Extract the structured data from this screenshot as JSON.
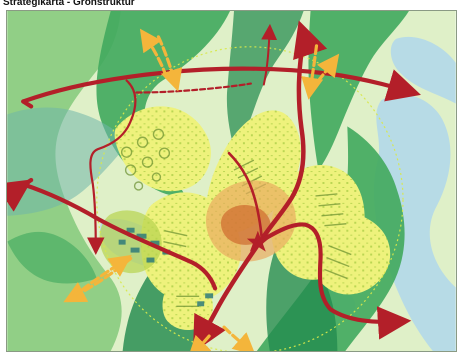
{
  "page": {
    "title": "Strategikarta - Grönstruktur"
  },
  "map": {
    "colors": {
      "background": "#dff0c8",
      "water": "#b7dbe6",
      "outer_green": "#91cf86",
      "green_wedge": "#43aa5f",
      "dark_green": "#238a4e",
      "built_area": "#eef27c",
      "urban_fabric": "#b6d34f",
      "centre": "#e9aa5f",
      "centre_core": "#cf6c2f",
      "main_route": "#b31f29",
      "green_link": "#f4b53b",
      "circle": "#d8e84b",
      "teal_area": "#6fb6aa"
    },
    "markers": {
      "centre": "star-icon"
    }
  }
}
